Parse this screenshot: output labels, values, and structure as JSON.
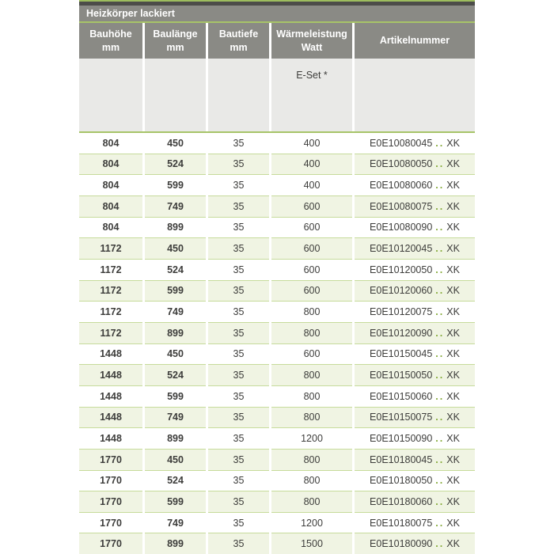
{
  "table": {
    "title": "Heizkörper lackiert",
    "columns": [
      {
        "line1": "Bauhöhe",
        "line2": "mm"
      },
      {
        "line1": "Baulänge",
        "line2": "mm"
      },
      {
        "line1": "Bautiefe",
        "line2": "mm"
      },
      {
        "line1": "Wärmeleistung",
        "line2": "Watt"
      },
      {
        "line1": "Artikelnummer",
        "line2": ""
      }
    ],
    "subheader": {
      "eset_label": "E-Set *"
    },
    "artikel_dots": "..",
    "rows": [
      {
        "bauhoehe": "804",
        "baulaenge": "450",
        "bautiefe": "35",
        "watt": "400",
        "artikel_code": "E0E10080045",
        "artikel_suffix": "XK"
      },
      {
        "bauhoehe": "804",
        "baulaenge": "524",
        "bautiefe": "35",
        "watt": "400",
        "artikel_code": "E0E10080050",
        "artikel_suffix": "XK"
      },
      {
        "bauhoehe": "804",
        "baulaenge": "599",
        "bautiefe": "35",
        "watt": "400",
        "artikel_code": "E0E10080060",
        "artikel_suffix": "XK"
      },
      {
        "bauhoehe": "804",
        "baulaenge": "749",
        "bautiefe": "35",
        "watt": "600",
        "artikel_code": "E0E10080075",
        "artikel_suffix": "XK"
      },
      {
        "bauhoehe": "804",
        "baulaenge": "899",
        "bautiefe": "35",
        "watt": "600",
        "artikel_code": "E0E10080090",
        "artikel_suffix": "XK"
      },
      {
        "bauhoehe": "1172",
        "baulaenge": "450",
        "bautiefe": "35",
        "watt": "600",
        "artikel_code": "E0E10120045",
        "artikel_suffix": "XK"
      },
      {
        "bauhoehe": "1172",
        "baulaenge": "524",
        "bautiefe": "35",
        "watt": "600",
        "artikel_code": "E0E10120050",
        "artikel_suffix": "XK"
      },
      {
        "bauhoehe": "1172",
        "baulaenge": "599",
        "bautiefe": "35",
        "watt": "600",
        "artikel_code": "E0E10120060",
        "artikel_suffix": "XK"
      },
      {
        "bauhoehe": "1172",
        "baulaenge": "749",
        "bautiefe": "35",
        "watt": "800",
        "artikel_code": "E0E10120075",
        "artikel_suffix": "XK"
      },
      {
        "bauhoehe": "1172",
        "baulaenge": "899",
        "bautiefe": "35",
        "watt": "800",
        "artikel_code": "E0E10120090",
        "artikel_suffix": "XK"
      },
      {
        "bauhoehe": "1448",
        "baulaenge": "450",
        "bautiefe": "35",
        "watt": "600",
        "artikel_code": "E0E10150045",
        "artikel_suffix": "XK"
      },
      {
        "bauhoehe": "1448",
        "baulaenge": "524",
        "bautiefe": "35",
        "watt": "800",
        "artikel_code": "E0E10150050",
        "artikel_suffix": "XK"
      },
      {
        "bauhoehe": "1448",
        "baulaenge": "599",
        "bautiefe": "35",
        "watt": "800",
        "artikel_code": "E0E10150060",
        "artikel_suffix": "XK"
      },
      {
        "bauhoehe": "1448",
        "baulaenge": "749",
        "bautiefe": "35",
        "watt": "800",
        "artikel_code": "E0E10150075",
        "artikel_suffix": "XK"
      },
      {
        "bauhoehe": "1448",
        "baulaenge": "899",
        "bautiefe": "35",
        "watt": "1200",
        "artikel_code": "E0E10150090",
        "artikel_suffix": "XK"
      },
      {
        "bauhoehe": "1770",
        "baulaenge": "450",
        "bautiefe": "35",
        "watt": "800",
        "artikel_code": "E0E10180045",
        "artikel_suffix": "XK"
      },
      {
        "bauhoehe": "1770",
        "baulaenge": "524",
        "bautiefe": "35",
        "watt": "800",
        "artikel_code": "E0E10180050",
        "artikel_suffix": "XK"
      },
      {
        "bauhoehe": "1770",
        "baulaenge": "599",
        "bautiefe": "35",
        "watt": "800",
        "artikel_code": "E0E10180060",
        "artikel_suffix": "XK"
      },
      {
        "bauhoehe": "1770",
        "baulaenge": "749",
        "bautiefe": "35",
        "watt": "1200",
        "artikel_code": "E0E10180075",
        "artikel_suffix": "XK"
      },
      {
        "bauhoehe": "1770",
        "baulaenge": "899",
        "bautiefe": "35",
        "watt": "1500",
        "artikel_code": "E0E10180090",
        "artikel_suffix": "XK"
      }
    ],
    "colors": {
      "accent_green": "#a7c468",
      "top_line_green": "#9dbd5e",
      "dark_bar": "#4c4c49",
      "header_gray": "#8a8a85",
      "subheader_bg": "#e9e9e7",
      "row_tint": "#f0f4e3",
      "row_separator": "#c6db9b",
      "dot_green": "#85aa38",
      "text_dark": "#3d3d3b",
      "header_text": "#ffffff"
    }
  }
}
